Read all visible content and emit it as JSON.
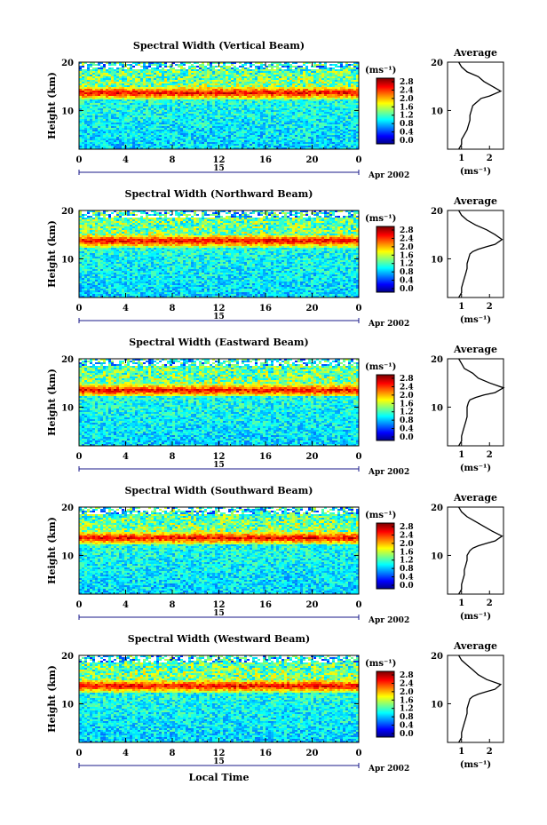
{
  "figure": {
    "xlabel": "Local Time",
    "date_label": "Apr 2002",
    "day_label": "15",
    "units_label": "(ms⁻¹)",
    "colorbar_ticks": [
      "2.8",
      "2.4",
      "2.0",
      "1.6",
      "1.2",
      "0.8",
      "0.4",
      "0.0"
    ],
    "colors": {
      "jet": [
        "#00007f",
        "#0000ff",
        "#007fff",
        "#00ffff",
        "#7fff7f",
        "#ffff00",
        "#ff7f00",
        "#ff0000",
        "#7f0000"
      ],
      "line": "#000000"
    }
  },
  "chart_data": [
    {
      "type": "heatmap",
      "title": "Spectral Width (Vertical Beam)",
      "ylabel": "Height (km)",
      "xlabel": "",
      "x_ticks": [
        "0",
        "4",
        "8",
        "12",
        "16",
        "20",
        "0"
      ],
      "y_ticks": [
        "20",
        "10"
      ],
      "xlim": [
        0,
        24
      ],
      "ylim": [
        2,
        20
      ],
      "colorbar_range": [
        0,
        3.0
      ],
      "layer_height": [
        13.5,
        14.2
      ],
      "layer_value": 2.4
    },
    {
      "type": "line",
      "title": "Average",
      "xlabel": "(ms⁻¹)",
      "ylabel": "",
      "x_ticks": [
        "1",
        "2"
      ],
      "y_ticks": [
        "20",
        "10"
      ],
      "xlim": [
        0.5,
        2.5
      ],
      "ylim": [
        2,
        20
      ],
      "x": [
        0.9,
        1.0,
        1.0,
        1.1,
        1.2,
        1.25,
        1.3,
        1.3,
        1.35,
        1.4,
        1.5,
        1.6,
        1.7,
        2.0,
        2.4,
        2.1,
        1.8,
        1.6,
        1.2,
        1.0,
        0.9
      ],
      "y": [
        2,
        3,
        4,
        5,
        6,
        7,
        8,
        9,
        10,
        11,
        11.5,
        12,
        12.5,
        13,
        14,
        15,
        16,
        17,
        18,
        19,
        20
      ]
    },
    {
      "type": "heatmap",
      "title": "Spectral Width (Northward Beam)",
      "ylabel": "Height (km)",
      "xlabel": "",
      "x_ticks": [
        "0",
        "4",
        "8",
        "12",
        "16",
        "20",
        "0"
      ],
      "y_ticks": [
        "20",
        "10"
      ],
      "xlim": [
        0,
        24
      ],
      "ylim": [
        2,
        20
      ],
      "colorbar_range": [
        0,
        3.0
      ],
      "layer_height": [
        13.6,
        14.2
      ],
      "layer_value": 2.4
    },
    {
      "type": "line",
      "title": "Average",
      "xlabel": "(ms⁻¹)",
      "ylabel": "",
      "x_ticks": [
        "1",
        "2"
      ],
      "y_ticks": [
        "20",
        "10"
      ],
      "xlim": [
        0.5,
        2.5
      ],
      "ylim": [
        2,
        20
      ],
      "x": [
        0.9,
        1.0,
        1.0,
        1.05,
        1.1,
        1.15,
        1.2,
        1.2,
        1.25,
        1.3,
        1.4,
        1.6,
        1.9,
        2.2,
        2.45,
        2.2,
        1.9,
        1.5,
        1.2,
        1.0,
        0.9
      ],
      "y": [
        2,
        3,
        4,
        5,
        6,
        7,
        8,
        9,
        10,
        11,
        11.5,
        12,
        12.5,
        13,
        14,
        15,
        16,
        17,
        18,
        19,
        20
      ]
    },
    {
      "type": "heatmap",
      "title": "Spectral Width (Eastward Beam)",
      "ylabel": "Height (km)",
      "xlabel": "",
      "x_ticks": [
        "0",
        "4",
        "8",
        "12",
        "16",
        "20",
        "0"
      ],
      "y_ticks": [
        "20",
        "10"
      ],
      "xlim": [
        0,
        24
      ],
      "ylim": [
        2,
        20
      ],
      "colorbar_range": [
        0,
        3.0
      ],
      "layer_height": [
        13.3,
        14.0
      ],
      "layer_value": 2.5
    },
    {
      "type": "line",
      "title": "Average",
      "xlabel": "(ms⁻¹)",
      "ylabel": "",
      "x_ticks": [
        "1",
        "2"
      ],
      "y_ticks": [
        "20",
        "10"
      ],
      "xlim": [
        0.5,
        2.5
      ],
      "ylim": [
        2,
        20
      ],
      "x": [
        0.9,
        1.0,
        1.0,
        1.05,
        1.1,
        1.15,
        1.2,
        1.2,
        1.2,
        1.25,
        1.3,
        1.5,
        1.8,
        2.2,
        2.5,
        2.0,
        1.6,
        1.4,
        1.1,
        1.0,
        0.9
      ],
      "y": [
        2,
        3,
        4,
        5,
        6,
        7,
        8,
        9,
        10,
        11,
        11.5,
        12,
        12.5,
        13,
        14,
        15,
        16,
        17,
        18,
        19,
        20
      ]
    },
    {
      "type": "heatmap",
      "title": "Spectral Width (Southward Beam)",
      "ylabel": "Height (km)",
      "xlabel": "",
      "x_ticks": [
        "0",
        "4",
        "8",
        "12",
        "16",
        "20",
        "0"
      ],
      "y_ticks": [
        "20",
        "10"
      ],
      "xlim": [
        0,
        24
      ],
      "ylim": [
        2,
        20
      ],
      "colorbar_range": [
        0,
        3.0
      ],
      "layer_height": [
        13.2,
        14.4
      ],
      "layer_value": 2.3
    },
    {
      "type": "line",
      "title": "Average",
      "xlabel": "(ms⁻¹)",
      "ylabel": "",
      "x_ticks": [
        "1",
        "2"
      ],
      "y_ticks": [
        "20",
        "10"
      ],
      "xlim": [
        0.5,
        2.5
      ],
      "ylim": [
        2,
        20
      ],
      "x": [
        0.9,
        1.0,
        1.0,
        1.05,
        1.1,
        1.1,
        1.15,
        1.2,
        1.2,
        1.3,
        1.4,
        1.6,
        1.9,
        2.2,
        2.45,
        2.1,
        1.8,
        1.5,
        1.2,
        1.0,
        0.9
      ],
      "y": [
        2,
        3,
        4,
        5,
        6,
        7,
        8,
        9,
        10,
        11,
        11.5,
        12,
        12.5,
        13,
        14,
        15,
        16,
        17,
        18,
        19,
        20
      ]
    },
    {
      "type": "heatmap",
      "title": "Spectral Width (Westward Beam)",
      "ylabel": "Height (km)",
      "xlabel": "Local Time",
      "x_ticks": [
        "0",
        "4",
        "8",
        "12",
        "16",
        "20",
        "0"
      ],
      "y_ticks": [
        "20",
        "10"
      ],
      "xlim": [
        0,
        24
      ],
      "ylim": [
        2,
        20
      ],
      "colorbar_range": [
        0,
        3.0
      ],
      "layer_height": [
        13.5,
        14.2
      ],
      "layer_value": 2.4
    },
    {
      "type": "line",
      "title": "Average",
      "xlabel": "(ms⁻¹)",
      "ylabel": "",
      "x_ticks": [
        "1",
        "2"
      ],
      "y_ticks": [
        "20",
        "10"
      ],
      "xlim": [
        0.5,
        2.5
      ],
      "ylim": [
        2,
        20
      ],
      "x": [
        0.9,
        1.0,
        1.0,
        1.05,
        1.1,
        1.15,
        1.2,
        1.2,
        1.25,
        1.3,
        1.4,
        1.6,
        1.9,
        2.2,
        2.4,
        1.9,
        1.6,
        1.4,
        1.2,
        1.0,
        0.9
      ],
      "y": [
        2,
        3,
        4,
        5,
        6,
        7,
        8,
        9,
        10,
        11,
        11.5,
        12,
        12.5,
        13,
        14,
        15,
        16,
        17,
        18,
        19,
        20
      ]
    }
  ]
}
